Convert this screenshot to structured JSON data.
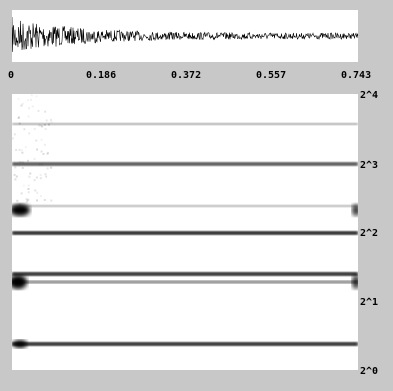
{
  "time_axis": {
    "ticks": [
      "0",
      "0.186",
      "0.372",
      "0.557",
      "0.743"
    ]
  },
  "scale_axis": {
    "ticks": [
      "2^4",
      "2^3",
      "2^2",
      "2^1",
      "2^0"
    ]
  },
  "colors": {
    "background": "#c8c8c8",
    "plot_bg": "#ffffff",
    "ink": "#000000"
  }
}
